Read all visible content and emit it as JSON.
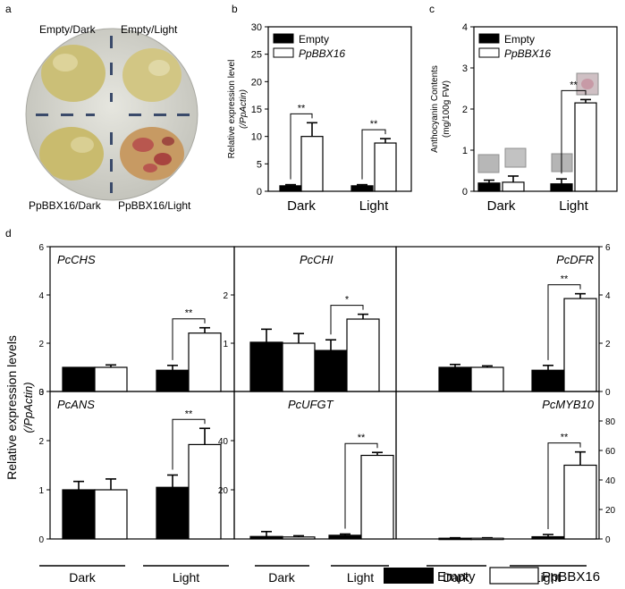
{
  "panel_letters": {
    "a": "a",
    "b": "b",
    "c": "c",
    "d": "d"
  },
  "plate": {
    "labels": {
      "top_left": "Empty/Dark",
      "top_right": "Empty/Light",
      "bottom_left": "PpBBX16/Dark",
      "bottom_right": "PpBBX16/Light"
    },
    "colors": {
      "plate": "#d9d9d2",
      "callus": "#cfc27a",
      "red_callus": "#b8574f"
    }
  },
  "significance": {
    "double": "**",
    "single": "*"
  },
  "bottom_legend": {
    "empty": "Empty",
    "ppbbx16": "PpBBX16"
  },
  "d_axis": {
    "ylabel_main": "Relative expression levels",
    "ylabel_sub": "(/PpActin)"
  },
  "d_groups": [
    "Dark",
    "Light"
  ],
  "colors": {
    "empty": "#000000",
    "ppbbx16": "#ffffff"
  },
  "chart_data": [
    {
      "id": "b",
      "type": "bar",
      "categories": [
        "Dark",
        "Light"
      ],
      "series": [
        {
          "name": "Empty",
          "values": [
            1.0,
            1.0
          ],
          "errors": [
            0.2,
            0.2
          ]
        },
        {
          "name": "PpBBX16",
          "values": [
            10.0,
            8.8
          ],
          "errors": [
            2.5,
            0.8
          ]
        }
      ],
      "ylim": [
        0,
        30
      ],
      "yticks": [
        0,
        5,
        10,
        15,
        20,
        25,
        30
      ],
      "ylabel": "Relative expression level",
      "ylabel2": "(/PpActin)",
      "significance": [
        "**",
        "**"
      ],
      "legend_position": "top-left"
    },
    {
      "id": "c",
      "type": "bar",
      "categories": [
        "Dark",
        "Light"
      ],
      "series": [
        {
          "name": "Empty",
          "values": [
            0.2,
            0.18
          ],
          "errors": [
            0.07,
            0.12
          ]
        },
        {
          "name": "PpBBX16",
          "values": [
            0.22,
            2.15
          ],
          "errors": [
            0.15,
            0.08
          ]
        }
      ],
      "ylim": [
        0,
        4
      ],
      "yticks": [
        0,
        1,
        2,
        3,
        4
      ],
      "ylabel": "Anthocyanin Contents",
      "ylabel2": "(mg/100g FW)",
      "significance": [
        "",
        "**"
      ],
      "legend_position": "top-left"
    },
    {
      "id": "PcCHS",
      "type": "bar",
      "title": "PcCHS",
      "categories": [
        "Dark",
        "Light"
      ],
      "series": [
        {
          "name": "Empty",
          "values": [
            1.0,
            0.88
          ],
          "errors": [
            0.0,
            0.2
          ]
        },
        {
          "name": "PpBBX16",
          "values": [
            1.0,
            2.42
          ],
          "errors": [
            0.1,
            0.22
          ]
        }
      ],
      "ylim": [
        0,
        6
      ],
      "yticks": [
        0,
        2,
        4,
        6
      ],
      "significance": [
        "",
        "**"
      ]
    },
    {
      "id": "PcCHI",
      "type": "bar",
      "title": "PcCHI",
      "categories": [
        "Dark",
        "Light"
      ],
      "series": [
        {
          "name": "Empty",
          "values": [
            1.02,
            0.85
          ],
          "errors": [
            0.27,
            0.22
          ]
        },
        {
          "name": "PpBBX16",
          "values": [
            1.0,
            1.5
          ],
          "errors": [
            0.2,
            0.1
          ]
        }
      ],
      "ylim": [
        0,
        3
      ],
      "yticks": [
        1,
        2
      ],
      "significance": [
        "",
        "*"
      ]
    },
    {
      "id": "PcDFR",
      "type": "bar",
      "title": "PcDFR",
      "categories": [
        "Dark",
        "Light"
      ],
      "series": [
        {
          "name": "Empty",
          "values": [
            1.0,
            0.88
          ],
          "errors": [
            0.12,
            0.2
          ]
        },
        {
          "name": "PpBBX16",
          "values": [
            1.0,
            3.85
          ],
          "errors": [
            0.06,
            0.2
          ]
        }
      ],
      "ylim": [
        0,
        6
      ],
      "yticks": [
        0,
        2,
        4,
        6
      ],
      "significance": [
        "",
        "**"
      ]
    },
    {
      "id": "PcANS",
      "type": "bar",
      "title": "PcANS",
      "categories": [
        "Dark",
        "Light"
      ],
      "series": [
        {
          "name": "Empty",
          "values": [
            1.0,
            1.05
          ],
          "errors": [
            0.17,
            0.25
          ]
        },
        {
          "name": "PpBBX16",
          "values": [
            1.0,
            1.92
          ],
          "errors": [
            0.22,
            0.33
          ]
        }
      ],
      "ylim": [
        0,
        3
      ],
      "yticks": [
        0,
        1,
        2,
        3
      ],
      "significance": [
        "",
        "**"
      ]
    },
    {
      "id": "PcUFGT",
      "type": "bar",
      "title": "PcUFGT",
      "categories": [
        "Dark",
        "Light"
      ],
      "series": [
        {
          "name": "Empty",
          "values": [
            1.0,
            1.5
          ],
          "errors": [
            2.0,
            0.5
          ]
        },
        {
          "name": "PpBBX16",
          "values": [
            0.8,
            34.0
          ],
          "errors": [
            0.5,
            1.2
          ]
        }
      ],
      "ylim": [
        0,
        60
      ],
      "yticks": [
        20,
        40
      ],
      "significance": [
        "",
        "**"
      ]
    },
    {
      "id": "PcMYB10",
      "type": "bar",
      "title": "PcMYB10",
      "categories": [
        "Dark",
        "Light"
      ],
      "series": [
        {
          "name": "Empty",
          "values": [
            0.5,
            1.5
          ],
          "errors": [
            0.3,
            1.5
          ]
        },
        {
          "name": "PpBBX16",
          "values": [
            0.5,
            50.0
          ],
          "errors": [
            0.3,
            9.0
          ]
        }
      ],
      "ylim": [
        0,
        100
      ],
      "yticks": [
        0,
        20,
        40,
        60,
        80
      ],
      "significance": [
        "",
        "**"
      ]
    }
  ]
}
